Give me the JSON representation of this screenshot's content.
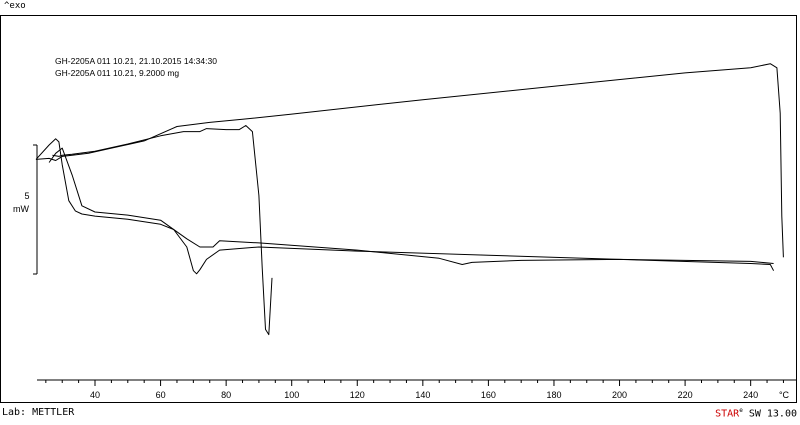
{
  "header": {
    "exo_label": "^exo"
  },
  "annotations": [
    "GH-2205A  011 10.21, 21.10.2015 14:34:30",
    "GH-2205A  011 10.21, 9.2000 mg"
  ],
  "scale_bar": {
    "value": "5",
    "unit": "mW"
  },
  "footer": {
    "lab_label": "Lab: METTLER",
    "software_brand": "STAR",
    "software_reg": "e",
    "software_version": " SW 13.00"
  },
  "chart_data": {
    "type": "line",
    "xlabel_unit": "°C",
    "xlim": [
      22,
      252
    ],
    "x_ticks": [
      40,
      60,
      80,
      100,
      120,
      140,
      160,
      180,
      200,
      220,
      240
    ],
    "grid": false,
    "series": [
      {
        "x": [
          22,
          26,
          28,
          30,
          33,
          38,
          45,
          55,
          65,
          75,
          85,
          100,
          140,
          180,
          220,
          240,
          246,
          248,
          249,
          249.5,
          250
        ],
        "y": [
          -1.5,
          -1.4,
          -1.6,
          -1.2,
          -1.1,
          -0.9,
          -0.4,
          0.3,
          1.7,
          2.1,
          2.4,
          2.9,
          4.3,
          5.6,
          6.9,
          7.4,
          7.8,
          7.4,
          3.0,
          -7.0,
          -11.0
        ]
      },
      {
        "x": [
          22,
          26,
          28,
          29,
          30,
          32,
          34,
          36,
          40,
          50,
          60,
          64,
          68,
          70,
          71,
          72,
          74,
          78,
          90,
          120,
          160,
          200,
          240,
          246,
          247
        ],
        "y": [
          -1.5,
          -0.1,
          0.5,
          0.2,
          -2.0,
          -5.5,
          -6.5,
          -6.8,
          -7.0,
          -7.3,
          -7.8,
          -8.3,
          -10.0,
          -12.3,
          -12.6,
          -12.2,
          -11.2,
          -10.3,
          -10.0,
          -10.4,
          -10.8,
          -11.2,
          -11.6,
          -11.7,
          -12.3
        ]
      },
      {
        "x": [
          27,
          29,
          30,
          33,
          40,
          50,
          60,
          67,
          72,
          74,
          80,
          84,
          86,
          88,
          90,
          91,
          92,
          93,
          94
        ],
        "y": [
          -1.1,
          -1.2,
          -1.1,
          -1.0,
          -0.7,
          0.0,
          0.8,
          1.2,
          1.2,
          1.5,
          1.4,
          1.4,
          1.8,
          1.2,
          -5.0,
          -12.0,
          -18.0,
          -18.5,
          -13.0
        ]
      },
      {
        "x": [
          26,
          28,
          30,
          33,
          36,
          40,
          50,
          60,
          68,
          72,
          74,
          76,
          78,
          90,
          120,
          145,
          152,
          155,
          170,
          200,
          240,
          247
        ],
        "y": [
          -1.8,
          -0.9,
          -0.4,
          -3.0,
          -6.0,
          -6.6,
          -6.9,
          -7.4,
          -9.2,
          -10.0,
          -10.0,
          -10.0,
          -9.4,
          -9.6,
          -10.3,
          -11.1,
          -11.7,
          -11.5,
          -11.3,
          -11.2,
          -11.4,
          -11.6
        ]
      }
    ]
  }
}
